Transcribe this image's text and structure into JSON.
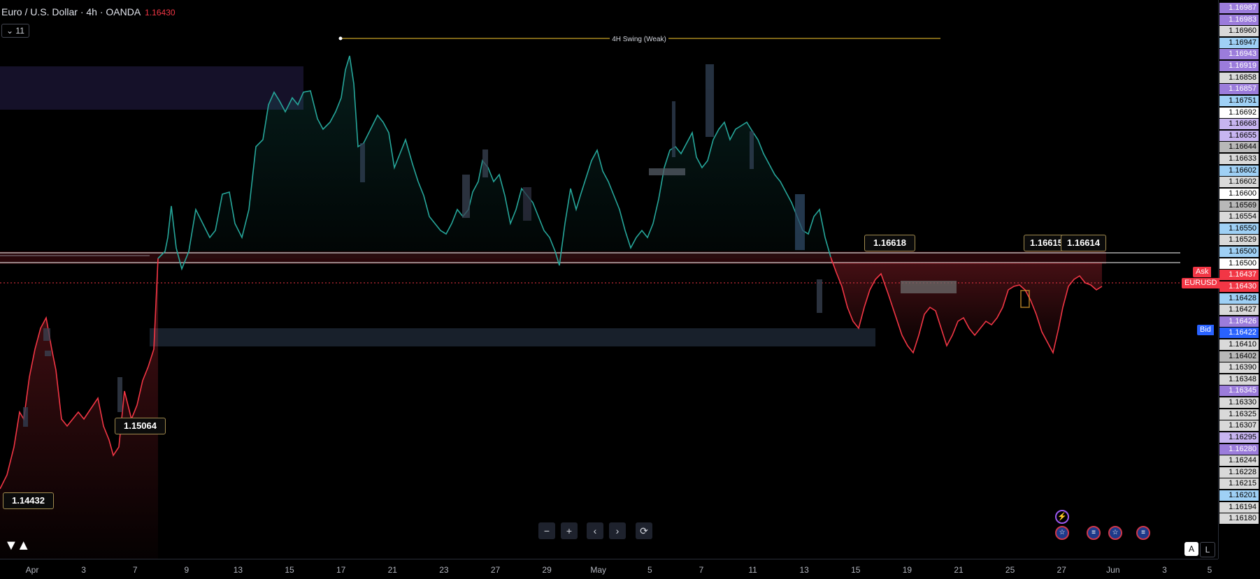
{
  "header": {
    "symbol_title": "Euro / U.S. Dollar · 4h · OANDA",
    "last_price": "1.16430",
    "indicators_button": "11"
  },
  "annotations": {
    "swing_label": "4H Swing (Weak)",
    "callout_high": "1.16618",
    "callout_high2a": "1.16615",
    "callout_high2b": "1.16614",
    "callout_low1": "1.15064",
    "callout_low2": "1.14432"
  },
  "price_scale": {
    "ticks": [
      "1.16987",
      "1.16983",
      "1.16960",
      "1.16947",
      "1.16943",
      "1.16919",
      "1.16858",
      "1.16857",
      "1.16751",
      "1.16692",
      "1.16668",
      "1.16655",
      "1.16644",
      "1.16633",
      "1.16602",
      "1.16602",
      "1.16600",
      "1.16569",
      "1.16554",
      "1.16550",
      "1.16529",
      "1.16500",
      "1.16500",
      "1.16437",
      "1.16430",
      "1.16428",
      "1.16427",
      "1.16426",
      "1.16422",
      "1.16410",
      "1.16402",
      "1.16390",
      "1.16348",
      "1.16345",
      "1.16330",
      "1.16325",
      "1.16307",
      "1.16295",
      "1.16280",
      "1.16244",
      "1.16228",
      "1.16215",
      "1.16201",
      "1.16194",
      "1.16180"
    ],
    "tick_colors": [
      "#9b7cdb",
      "#9b7cdb",
      "#d9d9d9",
      "#9fd0f5",
      "#9b7cdb",
      "#9b7cdb",
      "#d9d9d9",
      "#9b7cdb",
      "#9fd0f5",
      "#ffffff",
      "#c7b5f0",
      "#c7b5f0",
      "#b8b8b8",
      "#d9d9d9",
      "#9fd0f5",
      "#d9d9d9",
      "#ffffff",
      "#b8b8b8",
      "#d9d9d9",
      "#9fd0f5",
      "#d9d9d9",
      "#9fd0f5",
      "#ffffff",
      "#f23645",
      "#f23645",
      "#9fd0f5",
      "#d9d9d9",
      "#9b7cdb",
      "#2962ff",
      "#d9d9d9",
      "#b8b8b8",
      "#d9d9d9",
      "#d9d9d9",
      "#9b7cdb",
      "#d9d9d9",
      "#d9d9d9",
      "#d9d9d9",
      "#c7b5f0",
      "#9b7cdb",
      "#d9d9d9",
      "#d9d9d9",
      "#d9d9d9",
      "#9fd0f5",
      "#d9d9d9",
      "#d9d9d9"
    ],
    "ask_label": "Ask",
    "symbol_tag": "EURUSD",
    "bid_label": "Bid"
  },
  "time_axis": {
    "labels": [
      "Apr",
      "3",
      "7",
      "9",
      "13",
      "15",
      "17",
      "21",
      "23",
      "27",
      "29",
      "May",
      "5",
      "7",
      "11",
      "13",
      "15",
      "19",
      "21",
      "25",
      "27",
      "Jun",
      "3",
      "5"
    ]
  },
  "nav": {
    "zoom_out": "−",
    "zoom_in": "+",
    "scroll_left": "‹",
    "scroll_right": "›",
    "reset": "⟳"
  },
  "axis_controls": {
    "auto": "A",
    "log": "L"
  },
  "colors": {
    "up_line": "#26a69a",
    "down_line": "#f23645",
    "swing_line": "#c9a227"
  }
}
